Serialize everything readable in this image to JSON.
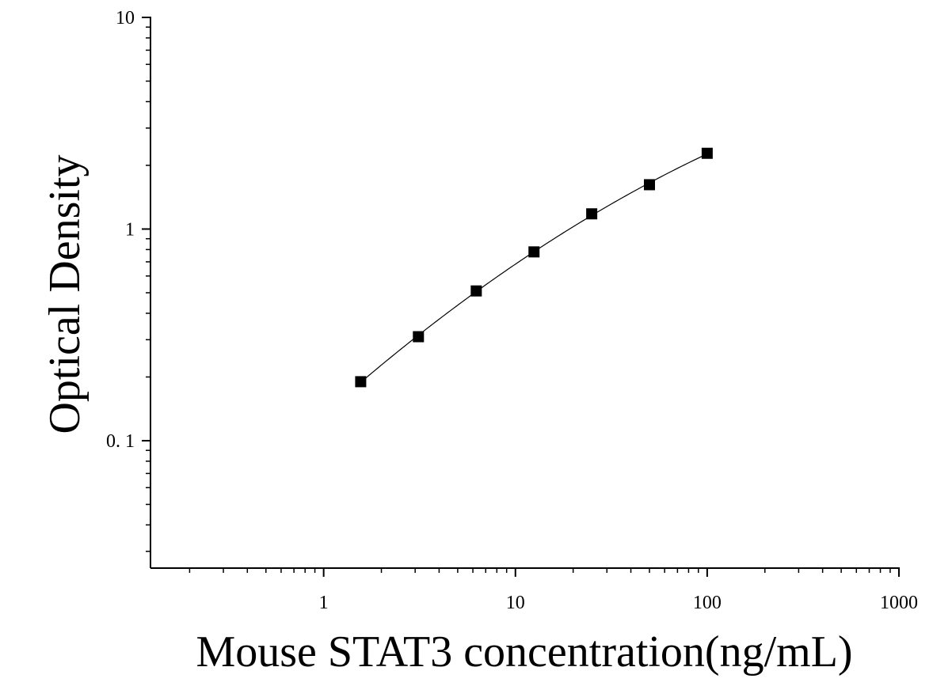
{
  "chart_data": {
    "type": "scatter",
    "title": "",
    "xlabel": "Mouse STAT3 concentration(ng/mL)",
    "ylabel": "Optical Density",
    "x_scale": "log",
    "y_scale": "log",
    "xlim": [
      0.125,
      1000
    ],
    "ylim": [
      0.025,
      10
    ],
    "x_ticks": [
      {
        "value": 1,
        "label": "1"
      },
      {
        "value": 10,
        "label": "10"
      },
      {
        "value": 100,
        "label": "100"
      },
      {
        "value": 1000,
        "label": "1000"
      }
    ],
    "y_ticks": [
      {
        "value": 0.1,
        "label": "0. 1"
      },
      {
        "value": 1,
        "label": "1"
      },
      {
        "value": 10,
        "label": "10"
      }
    ],
    "grid": false,
    "legend": "none",
    "series": [
      {
        "marker": "square",
        "fit_line": true,
        "x": [
          1.56,
          3.12,
          6.25,
          12.5,
          25,
          50,
          100
        ],
        "y": [
          0.19,
          0.31,
          0.51,
          0.78,
          1.18,
          1.62,
          2.28
        ]
      }
    ],
    "colors": {
      "marker": "#000000",
      "line": "#000000",
      "axes": "#000000"
    }
  }
}
